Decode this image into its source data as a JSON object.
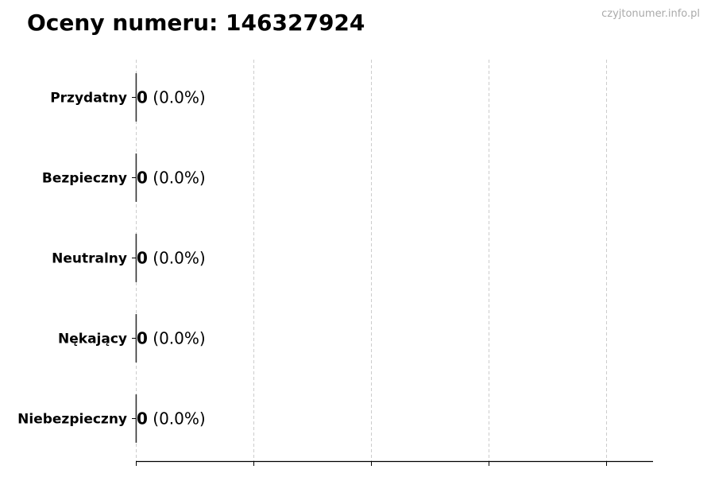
{
  "chart_data": {
    "type": "bar",
    "orientation": "horizontal",
    "title": "Oceny numeru: 146327924",
    "watermark": "czyjtonumer.info.pl",
    "categories": [
      "Przydatny",
      "Bezpieczny",
      "Neutralny",
      "Nękający",
      "Niebezpieczny"
    ],
    "values": [
      0,
      0,
      0,
      0,
      0
    ],
    "data_labels": [
      {
        "count": "0",
        "percent": "(0.0%)"
      },
      {
        "count": "0",
        "percent": "(0.0%)"
      },
      {
        "count": "0",
        "percent": "(0.0%)"
      },
      {
        "count": "0",
        "percent": "(0.0%)"
      },
      {
        "count": "0",
        "percent": "(0.0%)"
      }
    ],
    "xlim": [
      0,
      4.4
    ],
    "xticks": [
      0,
      1,
      2,
      3,
      4
    ],
    "xtick_labels_shown": false,
    "grid": "x dashed",
    "colors": {
      "grid": "#cccccc",
      "bar_edge": "#333333",
      "watermark": "#aaaaaa"
    }
  }
}
